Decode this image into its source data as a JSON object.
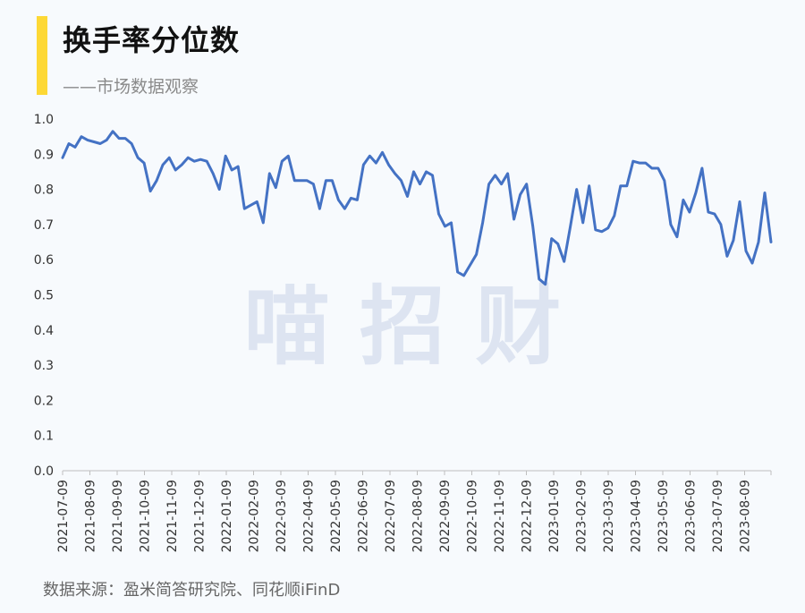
{
  "header": {
    "title": "换手率分位数",
    "subtitle": "——市场数据观察"
  },
  "watermark": "喵 招 财",
  "footer": {
    "source": "数据来源：盈米简答研究院、同花顺iFinD"
  },
  "colors": {
    "line": "#4472c4",
    "accent": "#fdd835",
    "background": "#f7fafd"
  },
  "chart_data": {
    "type": "line",
    "title": "换手率分位数",
    "xlabel": "",
    "ylabel": "",
    "ylim": [
      0,
      1.0
    ],
    "yticks": [
      "0.0",
      "0.1",
      "0.2",
      "0.3",
      "0.4",
      "0.5",
      "0.6",
      "0.7",
      "0.8",
      "0.9",
      "1.0"
    ],
    "grid": false,
    "x_tick_labels": [
      "2021-07-09",
      "2021-08-09",
      "2021-09-09",
      "2021-10-09",
      "2021-11-09",
      "2021-12-09",
      "2022-01-09",
      "2022-02-09",
      "2022-03-09",
      "2022-04-09",
      "2022-05-09",
      "2022-06-09",
      "2022-07-09",
      "2022-08-09",
      "2022-09-09",
      "2022-10-09",
      "2022-11-09",
      "2022-12-09",
      "2023-01-09",
      "2023-02-09",
      "2023-03-09",
      "2023-04-09",
      "2023-05-09",
      "2023-06-09",
      "2023-07-09",
      "2023-08-09"
    ],
    "series": [
      {
        "values": [
          0.89,
          0.93,
          0.92,
          0.95,
          0.94,
          0.935,
          0.93,
          0.94,
          0.965,
          0.945,
          0.945,
          0.93,
          0.89,
          0.875,
          0.795,
          0.825,
          0.87,
          0.89,
          0.855,
          0.87,
          0.89,
          0.88,
          0.885,
          0.88,
          0.845,
          0.8,
          0.895,
          0.855,
          0.865,
          0.745,
          0.755,
          0.765,
          0.705,
          0.845,
          0.805,
          0.88,
          0.895,
          0.825,
          0.825,
          0.825,
          0.815,
          0.745,
          0.825,
          0.825,
          0.77,
          0.745,
          0.775,
          0.77,
          0.87,
          0.895,
          0.875,
          0.905,
          0.87,
          0.845,
          0.825,
          0.78,
          0.85,
          0.815,
          0.85,
          0.84,
          0.73,
          0.695,
          0.705,
          0.565,
          0.555,
          0.585,
          0.615,
          0.705,
          0.815,
          0.84,
          0.815,
          0.845,
          0.715,
          0.785,
          0.815,
          0.695,
          0.545,
          0.53,
          0.66,
          0.645,
          0.595,
          0.695,
          0.8,
          0.705,
          0.81,
          0.685,
          0.68,
          0.69,
          0.725,
          0.81,
          0.81,
          0.88,
          0.875,
          0.875,
          0.86,
          0.86,
          0.825,
          0.7,
          0.665,
          0.77,
          0.735,
          0.79,
          0.86,
          0.735,
          0.73,
          0.7,
          0.61,
          0.655,
          0.765,
          0.625,
          0.59,
          0.65,
          0.79,
          0.65
        ]
      }
    ]
  }
}
